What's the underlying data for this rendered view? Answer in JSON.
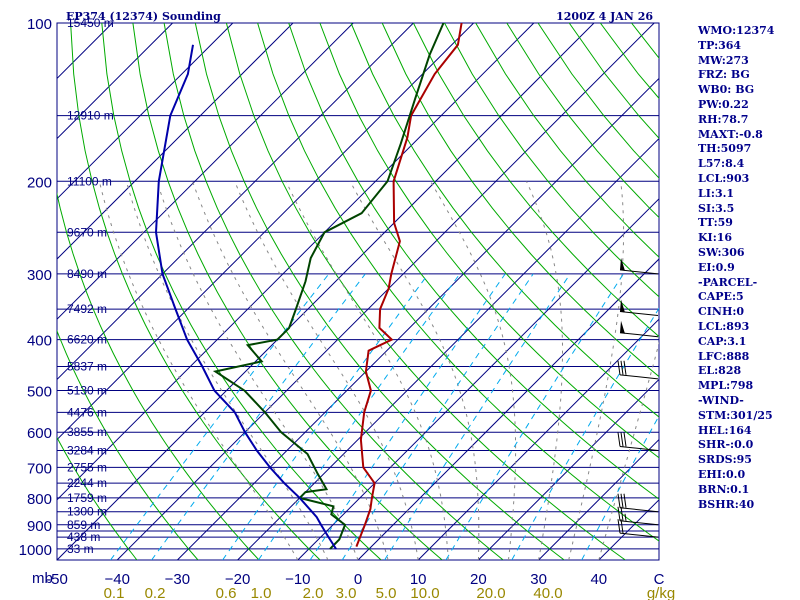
{
  "chart_data": {
    "type": "line",
    "title_left": "EP374 (12374) Sounding",
    "title_right": "1200Z  4 JAN 26",
    "pressure_unit": "mb",
    "pressure_ticks": [
      100,
      200,
      300,
      400,
      500,
      600,
      700,
      800,
      900,
      1000
    ],
    "pressure_levels": [
      100,
      150,
      200,
      250,
      300,
      350,
      400,
      450,
      500,
      550,
      600,
      650,
      700,
      750,
      800,
      850,
      900,
      925,
      950,
      1000
    ],
    "height_labels": [
      {
        "p": 100,
        "label": "15450 m"
      },
      {
        "p": 150,
        "label": "12910 m"
      },
      {
        "p": 200,
        "label": "11100 m"
      },
      {
        "p": 250,
        "label": "9670 m"
      },
      {
        "p": 300,
        "label": "8490 m"
      },
      {
        "p": 350,
        "label": "7492 m"
      },
      {
        "p": 400,
        "label": "6620 m"
      },
      {
        "p": 450,
        "label": "5837 m"
      },
      {
        "p": 500,
        "label": "5130 m"
      },
      {
        "p": 550,
        "label": "4476 m"
      },
      {
        "p": 600,
        "label": "3855 m"
      },
      {
        "p": 650,
        "label": "3284 m"
      },
      {
        "p": 700,
        "label": "2755 m"
      },
      {
        "p": 750,
        "label": "2244 m"
      },
      {
        "p": 800,
        "label": "1759 m"
      },
      {
        "p": 850,
        "label": "1300 m"
      },
      {
        "p": 900,
        "label": "859 m"
      },
      {
        "p": 950,
        "label": "438 m"
      },
      {
        "p": 1000,
        "label": "33 m"
      }
    ],
    "temp_ticks": [
      -50,
      -40,
      -30,
      -20,
      -10,
      0,
      10,
      20,
      30,
      40,
      50
    ],
    "temp_tick_labels": [
      "-50",
      "−40",
      "−30",
      "−20",
      "−10",
      "0",
      "10",
      "20",
      "30",
      "40",
      "C"
    ],
    "mixing_ratio_labels": [
      "0.1",
      "0.2",
      "0.6",
      "1.0",
      "2.0",
      "3.0",
      "5.0",
      "10.0",
      "20.0",
      "40.0",
      "g/kg"
    ],
    "series": [
      {
        "name": "temperature",
        "color": "#aa0000",
        "points": [
          [
            -2.5,
            990
          ],
          [
            -4.7,
            900
          ],
          [
            -6.4,
            840
          ],
          [
            -8,
            800
          ],
          [
            -10,
            750
          ],
          [
            -14.5,
            700
          ],
          [
            -19.5,
            620
          ],
          [
            -23.5,
            550
          ],
          [
            -26,
            500
          ],
          [
            -30,
            460
          ],
          [
            -33,
            420
          ],
          [
            -31,
            400
          ],
          [
            -35,
            380
          ],
          [
            -38,
            350
          ],
          [
            -40,
            320
          ],
          [
            -42,
            300
          ],
          [
            -46,
            260
          ],
          [
            -50,
            240
          ],
          [
            -57,
            200
          ],
          [
            -62,
            165
          ],
          [
            -65,
            150
          ],
          [
            -68,
            125
          ],
          [
            -69,
            110
          ],
          [
            -72,
            100
          ]
        ]
      },
      {
        "name": "dewpoint",
        "color": "#004400",
        "points": [
          [
            -6.5,
            1000
          ],
          [
            -6.5,
            960
          ],
          [
            -8,
            900
          ],
          [
            -12,
            860
          ],
          [
            -13,
            830
          ],
          [
            -20,
            800
          ],
          [
            -20,
            780
          ],
          [
            -17,
            770
          ],
          [
            -21,
            720
          ],
          [
            -26,
            660
          ],
          [
            -34,
            600
          ],
          [
            -40,
            550
          ],
          [
            -47,
            500
          ],
          [
            -55,
            460
          ],
          [
            -49,
            440
          ],
          [
            -54,
            410
          ],
          [
            -50,
            400
          ],
          [
            -50,
            380
          ],
          [
            -52,
            350
          ],
          [
            -55,
            310
          ],
          [
            -58,
            280
          ],
          [
            -60,
            250
          ],
          [
            -57,
            230
          ],
          [
            -58,
            200
          ],
          [
            -62,
            170
          ],
          [
            -67,
            140
          ],
          [
            -72,
            115
          ],
          [
            -75,
            100
          ]
        ]
      },
      {
        "name": "parcel",
        "color": "#0000aa",
        "points": [
          [
            -5.5,
            1000
          ],
          [
            -8.7,
            950
          ],
          [
            -12,
            900
          ],
          [
            -14,
            870
          ],
          [
            -20,
            800
          ],
          [
            -25,
            750
          ],
          [
            -30,
            700
          ],
          [
            -35,
            650
          ],
          [
            -40,
            600
          ],
          [
            -45,
            550
          ],
          [
            -52,
            500
          ],
          [
            -58,
            450
          ],
          [
            -65,
            400
          ],
          [
            -72,
            350
          ],
          [
            -80,
            300
          ],
          [
            -88,
            250
          ],
          [
            -96,
            200
          ],
          [
            -105,
            150
          ],
          [
            -109,
            125
          ],
          [
            -113,
            110
          ]
        ]
      }
    ],
    "wind_barbs": [
      {
        "p": 300,
        "flags": 1,
        "full": 0,
        "half": 0
      },
      {
        "p": 360,
        "flags": 1,
        "full": 0,
        "half": 0
      },
      {
        "p": 395,
        "flags": 1,
        "full": 0,
        "half": 0
      },
      {
        "p": 475,
        "flags": 0,
        "full": 3,
        "half": 0
      },
      {
        "p": 650,
        "flags": 0,
        "full": 3,
        "half": 0
      },
      {
        "p": 850,
        "flags": 0,
        "full": 3,
        "half": 0
      },
      {
        "p": 900,
        "flags": 0,
        "full": 2,
        "half": 1
      },
      {
        "p": 950,
        "flags": 0,
        "full": 2,
        "half": 0
      }
    ]
  },
  "indices": [
    "WMO:12374",
    "TP:364",
    "MW:273",
    "FRZ: BG",
    "WB0: BG",
    "PW:0.22",
    "RH:78.7",
    "MAXT:-0.8",
    "TH:5097",
    "L57:8.4",
    "LCL:903",
    "LI:3.1",
    "SI:3.5",
    "TT:59",
    "KI:16",
    "SW:306",
    "EI:0.9",
    "-PARCEL-",
    "CAPE:5",
    "CINH:0",
    "LCL:893",
    "CAP:3.1",
    "LFC:888",
    "EL:828",
    "MPL:798",
    "-WIND-",
    "STM:301/25",
    "HEL:164",
    "SHR-:0.0",
    "SRDS:95",
    "EHI:0.0",
    "BRN:0.1",
    "BSHR:40"
  ],
  "colors": {
    "isobar": "#000080",
    "isotherm": "#000080",
    "dry_adiabat": "#00aa00",
    "moist_adiabat": "#888888",
    "mixing_ratio": "#00aaee",
    "axis_text": "#000080",
    "mixing_text": "#998800"
  }
}
